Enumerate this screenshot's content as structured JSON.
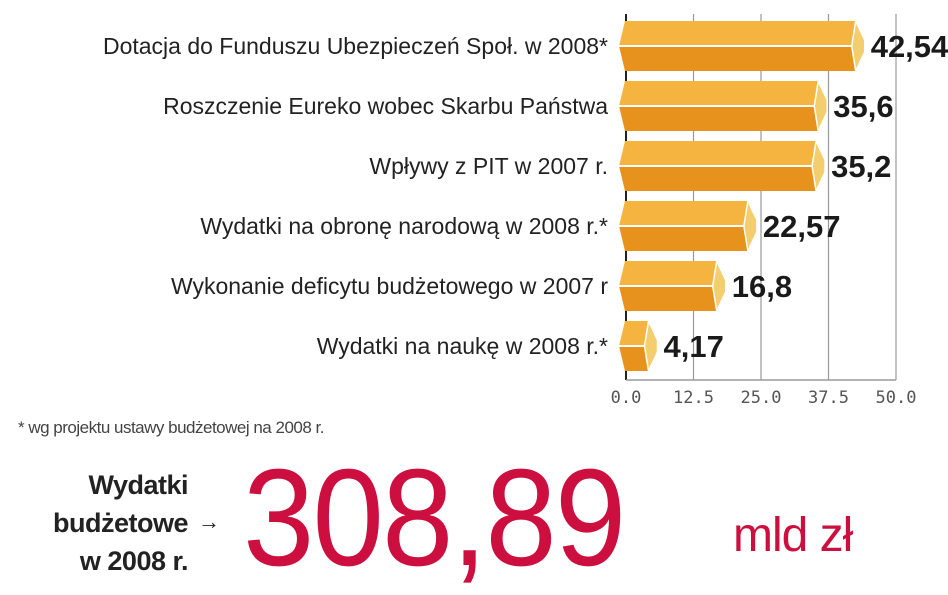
{
  "chart_data": {
    "type": "bar",
    "orientation": "horizontal",
    "categories": [
      "Dotacja do Funduszu Ubezpieczeń Społ. w 2008*",
      "Roszczenie Eureko wobec Skarbu Państwa",
      "Wpływy z PIT w 2007 r.",
      "Wydatki na obronę narodową w 2008 r.*",
      "Wykonanie deficytu budżetowego w 2007 r",
      "Wydatki na naukę w 2008 r.*"
    ],
    "values": [
      42.54,
      35.6,
      35.2,
      22.57,
      16.8,
      4.17
    ],
    "data_labels": [
      "42,54",
      "35,6",
      "35,2",
      "22,57",
      "16,8",
      "4,17"
    ],
    "xlim": [
      0,
      50
    ],
    "xticks": [
      "0.0",
      "12.5",
      "25.0",
      "37.5",
      "50.0"
    ],
    "xtick_values": [
      0,
      12.5,
      25,
      37.5,
      50
    ],
    "grid": true,
    "colors": {
      "bar_top": "#f5b440",
      "bar_bottom": "#e8921e",
      "bar_cap": "#f3cd6e",
      "grid": "#9a9a9a"
    }
  },
  "footnote": "* wg projektu ustawy budżetowej na 2008 r.",
  "summary": {
    "label_lines": [
      "Wydatki",
      "budżetowe",
      "w 2008 r."
    ],
    "arrow": "→",
    "value": "308,89",
    "unit": "mld zł",
    "color": "#cc0f3e"
  }
}
